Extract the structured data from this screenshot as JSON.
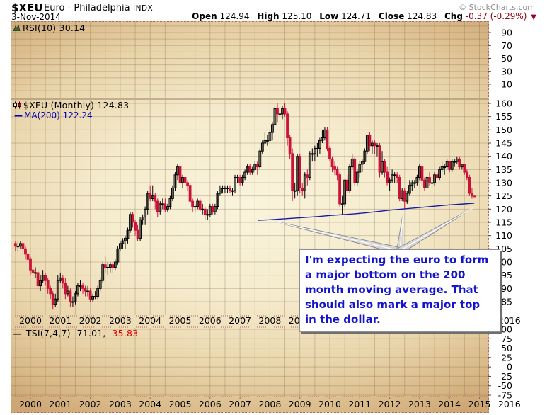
{
  "header": {
    "symbol": "$XEU",
    "name": "Euro - Philadelphia",
    "exchange": "INDX",
    "copyright": "© StockCharts.com",
    "date": "3-Nov-2014",
    "quote": {
      "open_label": "Open",
      "open": "124.94",
      "high_label": "High",
      "high": "125.10",
      "low_label": "Low",
      "low": "124.71",
      "close_label": "Close",
      "close": "124.83",
      "chg_label": "Chg",
      "chg": "-0.37 (-0.29%)",
      "direction": "down",
      "down_arrow": "▼"
    }
  },
  "panels": {
    "rsi": {
      "label": "RSI(10) 30.14"
    },
    "main": {
      "label": "$XEU (Monthly) 124.83",
      "ma_dash": "—",
      "ma_label": "MA(200) 122.24"
    },
    "tsi": {
      "label_dash": "—",
      "label_black": "TSI(7,4,7) -71.01,",
      "label_red": "-35.83"
    }
  },
  "annotation": {
    "text": "I'm expecting the euro to form a major bottom on the 200 month moving average. That should also mark a major top in the dollar."
  },
  "colors": {
    "candle_down": "#cc1236",
    "candle_up_stroke": "#000000",
    "ma_line": "#1a1aa0",
    "grid": "rgba(125,100,72,0.30)",
    "panel_border": "#b06868",
    "tick_text": "#000000",
    "chg_text": "#8b0013",
    "note_text": "#1414cc",
    "copyright": "#8a8a8a"
  },
  "chart_data": {
    "type": "candlestick",
    "title": "$XEU (Monthly) 124.83",
    "frequency": "monthly",
    "start": "1999-07",
    "end": "2014-11",
    "price_axis": {
      "min": 85,
      "max": 160,
      "step": 5
    },
    "x_axis": {
      "years": [
        2000,
        2001,
        2002,
        2003,
        2004,
        2005,
        2006,
        2007,
        2008,
        2009,
        2010,
        2011,
        2012,
        2013,
        2014,
        2015,
        2016
      ]
    },
    "rsi_panel": {
      "name": "RSI(10)",
      "last_value": 30.14,
      "axis_min": 10,
      "axis_max": 90,
      "tick_step": 20,
      "grid_step": 10,
      "line_visible": false
    },
    "tsi_panel": {
      "name": "TSI(7,4,7)",
      "last_values": [
        -71.01,
        -35.83
      ],
      "axis_min": -75,
      "axis_max": 100,
      "tick_step": 25,
      "grid_step": 25,
      "line_visible": false
    },
    "candles": [
      [
        107,
        108,
        104,
        106
      ],
      [
        106,
        108,
        104,
        106
      ],
      [
        106,
        108,
        105,
        107
      ],
      [
        107,
        108,
        103,
        105
      ],
      [
        105,
        106,
        101,
        103
      ],
      [
        103,
        104,
        99,
        101
      ],
      [
        101,
        102,
        95,
        97
      ],
      [
        97,
        99,
        94,
        96
      ],
      [
        96,
        98,
        94,
        96
      ],
      [
        96,
        97,
        89,
        91
      ],
      [
        91,
        95,
        89,
        93
      ],
      [
        93,
        97,
        92,
        95
      ],
      [
        95,
        96,
        91,
        93
      ],
      [
        93,
        94,
        88,
        90
      ],
      [
        90,
        91,
        86,
        88
      ],
      [
        88,
        89,
        82,
        84
      ],
      [
        84,
        88,
        83,
        86
      ],
      [
        86,
        95,
        85,
        93
      ],
      [
        93,
        96,
        92,
        94
      ],
      [
        94,
        95,
        90,
        92
      ],
      [
        92,
        94,
        86,
        88
      ],
      [
        88,
        91,
        87,
        89
      ],
      [
        89,
        90,
        83,
        85
      ],
      [
        85,
        87,
        83,
        85
      ],
      [
        85,
        89,
        84,
        88
      ],
      [
        88,
        92,
        87,
        91
      ],
      [
        91,
        93,
        89,
        91
      ],
      [
        91,
        92,
        88,
        90
      ],
      [
        90,
        91,
        87,
        89
      ],
      [
        89,
        91,
        87,
        89
      ],
      [
        89,
        90,
        85,
        86
      ],
      [
        86,
        88,
        85,
        87
      ],
      [
        87,
        89,
        86,
        87
      ],
      [
        87,
        91,
        86,
        90
      ],
      [
        90,
        94,
        89,
        93
      ],
      [
        93,
        100,
        92,
        99
      ],
      [
        99,
        102,
        96,
        98
      ],
      [
        98,
        100,
        95,
        98
      ],
      [
        98,
        100,
        96,
        99
      ],
      [
        99,
        100,
        96,
        98
      ],
      [
        98,
        101,
        97,
        100
      ],
      [
        100,
        106,
        99,
        105
      ],
      [
        105,
        108,
        104,
        107
      ],
      [
        107,
        109,
        105,
        108
      ],
      [
        108,
        110,
        105,
        109
      ],
      [
        109,
        113,
        107,
        112
      ],
      [
        112,
        119,
        111,
        118
      ],
      [
        118,
        119,
        113,
        115
      ],
      [
        115,
        116,
        110,
        112
      ],
      [
        112,
        114,
        108,
        109
      ],
      [
        109,
        117,
        108,
        116
      ],
      [
        116,
        118,
        114,
        117
      ],
      [
        117,
        121,
        114,
        120
      ],
      [
        120,
        127,
        118,
        126
      ],
      [
        126,
        129,
        123,
        124
      ],
      [
        124,
        129,
        123,
        125
      ],
      [
        125,
        126,
        120,
        123
      ],
      [
        123,
        124,
        117,
        119
      ],
      [
        119,
        123,
        118,
        122
      ],
      [
        122,
        124,
        120,
        122
      ],
      [
        122,
        124,
        119,
        120
      ],
      [
        120,
        122,
        119,
        121
      ],
      [
        121,
        125,
        120,
        124
      ],
      [
        124,
        129,
        123,
        128
      ],
      [
        128,
        134,
        127,
        133
      ],
      [
        133,
        137,
        131,
        136
      ],
      [
        136,
        136,
        129,
        130
      ],
      [
        130,
        133,
        128,
        132
      ],
      [
        132,
        133,
        128,
        130
      ],
      [
        130,
        131,
        127,
        129
      ],
      [
        129,
        130,
        122,
        123
      ],
      [
        123,
        124,
        119,
        121
      ],
      [
        121,
        122,
        119,
        121
      ],
      [
        121,
        124,
        120,
        123
      ],
      [
        123,
        124,
        119,
        120
      ],
      [
        120,
        122,
        118,
        120
      ],
      [
        120,
        121,
        116,
        118
      ],
      [
        118,
        120,
        116,
        118
      ],
      [
        118,
        122,
        117,
        121
      ],
      [
        121,
        122,
        118,
        119
      ],
      [
        119,
        122,
        118,
        121
      ],
      [
        121,
        127,
        120,
        126
      ],
      [
        126,
        129,
        125,
        128
      ],
      [
        128,
        129,
        126,
        128
      ],
      [
        128,
        129,
        126,
        128
      ],
      [
        128,
        129,
        126,
        128
      ],
      [
        128,
        129,
        126,
        127
      ],
      [
        127,
        128,
        125,
        127
      ],
      [
        127,
        133,
        126,
        132
      ],
      [
        132,
        133,
        130,
        132
      ],
      [
        132,
        133,
        129,
        130
      ],
      [
        130,
        133,
        129,
        132
      ],
      [
        132,
        135,
        131,
        134
      ],
      [
        134,
        137,
        133,
        136
      ],
      [
        136,
        137,
        133,
        134
      ],
      [
        134,
        136,
        133,
        135
      ],
      [
        135,
        138,
        134,
        137
      ],
      [
        137,
        138,
        133,
        136
      ],
      [
        136,
        143,
        135,
        142
      ],
      [
        142,
        146,
        141,
        145
      ],
      [
        145,
        149,
        144,
        146
      ],
      [
        146,
        148,
        144,
        146
      ],
      [
        146,
        150,
        145,
        149
      ],
      [
        149,
        153,
        146,
        152
      ],
      [
        152,
        159,
        151,
        158
      ],
      [
        158,
        160,
        153,
        156
      ],
      [
        156,
        158,
        153,
        156
      ],
      [
        156,
        159,
        154,
        158
      ],
      [
        158,
        160,
        155,
        156
      ],
      [
        156,
        157,
        144,
        147
      ],
      [
        147,
        148,
        139,
        141
      ],
      [
        141,
        143,
        123,
        127
      ],
      [
        127,
        130,
        124,
        127
      ],
      [
        127,
        141,
        125,
        140
      ],
      [
        140,
        141,
        126,
        128
      ],
      [
        128,
        130,
        125,
        127
      ],
      [
        127,
        134,
        124,
        133
      ],
      [
        133,
        135,
        129,
        132
      ],
      [
        132,
        142,
        131,
        141
      ],
      [
        141,
        143,
        138,
        141
      ],
      [
        141,
        144,
        138,
        143
      ],
      [
        143,
        145,
        140,
        143
      ],
      [
        143,
        147,
        141,
        146
      ],
      [
        146,
        150,
        145,
        147
      ],
      [
        147,
        151,
        146,
        150
      ],
      [
        150,
        151,
        142,
        143
      ],
      [
        143,
        144,
        138,
        139
      ],
      [
        139,
        140,
        134,
        136
      ],
      [
        136,
        138,
        133,
        135
      ],
      [
        135,
        136,
        131,
        133
      ],
      [
        133,
        134,
        121,
        122
      ],
      [
        122,
        125,
        118,
        122
      ],
      [
        122,
        131,
        121,
        131
      ],
      [
        131,
        133,
        126,
        127
      ],
      [
        127,
        137,
        126,
        136
      ],
      [
        136,
        141,
        135,
        139
      ],
      [
        139,
        140,
        129,
        130
      ],
      [
        130,
        135,
        129,
        134
      ],
      [
        134,
        138,
        132,
        137
      ],
      [
        137,
        139,
        134,
        138
      ],
      [
        138,
        143,
        137,
        142
      ],
      [
        142,
        148,
        141,
        148
      ],
      [
        148,
        149,
        142,
        144
      ],
      [
        144,
        146,
        141,
        145
      ],
      [
        145,
        146,
        141,
        144
      ],
      [
        144,
        145,
        140,
        144
      ],
      [
        144,
        145,
        132,
        134
      ],
      [
        134,
        142,
        133,
        138
      ],
      [
        138,
        139,
        132,
        134
      ],
      [
        134,
        136,
        129,
        130
      ],
      [
        130,
        132,
        127,
        131
      ],
      [
        131,
        135,
        130,
        133
      ],
      [
        133,
        134,
        130,
        133
      ],
      [
        133,
        134,
        130,
        132
      ],
      [
        132,
        133,
        123,
        124
      ],
      [
        124,
        128,
        123,
        127
      ],
      [
        127,
        128,
        120,
        123
      ],
      [
        123,
        127,
        122,
        126
      ],
      [
        126,
        131,
        125,
        129
      ],
      [
        129,
        131,
        127,
        130
      ],
      [
        130,
        131,
        128,
        130
      ],
      [
        130,
        133,
        129,
        132
      ],
      [
        132,
        137,
        131,
        136
      ],
      [
        136,
        137,
        129,
        131
      ],
      [
        131,
        132,
        127,
        128
      ],
      [
        128,
        133,
        127,
        132
      ],
      [
        132,
        134,
        129,
        130
      ],
      [
        130,
        134,
        128,
        130
      ],
      [
        130,
        134,
        129,
        133
      ],
      [
        133,
        134,
        131,
        132
      ],
      [
        132,
        136,
        131,
        135
      ],
      [
        135,
        138,
        134,
        136
      ],
      [
        136,
        137,
        133,
        136
      ],
      [
        136,
        139,
        135,
        138
      ],
      [
        138,
        138,
        134,
        135
      ],
      [
        135,
        139,
        134,
        138
      ],
      [
        138,
        139,
        136,
        138
      ],
      [
        138,
        140,
        137,
        139
      ],
      [
        139,
        140,
        135,
        136
      ],
      [
        136,
        137,
        135,
        137
      ],
      [
        137,
        137,
        133,
        134
      ],
      [
        134,
        135,
        131,
        132
      ],
      [
        132,
        133,
        125,
        126
      ],
      [
        126,
        128,
        124,
        125
      ],
      [
        124.94,
        125.1,
        124.71,
        124.83
      ]
    ],
    "ma200": {
      "name": "MA(200)",
      "last_value": 122.24,
      "points": [
        [
          2007.6,
          115.8
        ],
        [
          2008.0,
          116.0
        ],
        [
          2008.4,
          116.3
        ],
        [
          2008.8,
          116.6
        ],
        [
          2009.2,
          116.9
        ],
        [
          2009.6,
          117.2
        ],
        [
          2010.0,
          117.6
        ],
        [
          2010.4,
          117.9
        ],
        [
          2010.8,
          118.2
        ],
        [
          2011.2,
          118.6
        ],
        [
          2011.6,
          119.1
        ],
        [
          2012.0,
          119.6
        ],
        [
          2012.4,
          120.0
        ],
        [
          2012.8,
          120.4
        ],
        [
          2013.2,
          120.8
        ],
        [
          2013.6,
          121.2
        ],
        [
          2014.0,
          121.6
        ],
        [
          2014.4,
          121.9
        ],
        [
          2014.83,
          122.24
        ]
      ]
    },
    "callout_targets": [
      [
        2007.9,
        116.0
      ],
      [
        2012.45,
        118.8
      ],
      [
        2014.8,
        120.6
      ]
    ]
  }
}
